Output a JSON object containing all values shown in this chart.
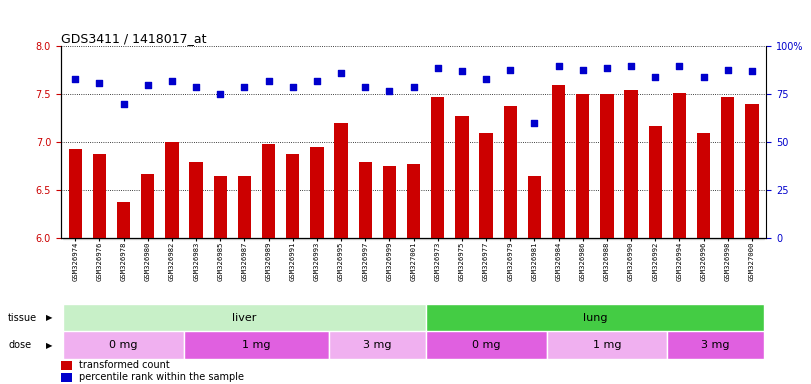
{
  "title": "GDS3411 / 1418017_at",
  "samples": [
    "GSM326974",
    "GSM326976",
    "GSM326978",
    "GSM326980",
    "GSM326982",
    "GSM326983",
    "GSM326985",
    "GSM326987",
    "GSM326989",
    "GSM326991",
    "GSM326993",
    "GSM326995",
    "GSM326997",
    "GSM326999",
    "GSM327001",
    "GSM326973",
    "GSM326975",
    "GSM326977",
    "GSM326979",
    "GSM326981",
    "GSM326984",
    "GSM326986",
    "GSM326988",
    "GSM326990",
    "GSM326992",
    "GSM326994",
    "GSM326996",
    "GSM326998",
    "GSM327000"
  ],
  "bar_values": [
    6.93,
    6.88,
    6.38,
    6.67,
    7.0,
    6.8,
    6.65,
    6.65,
    6.98,
    6.88,
    6.95,
    7.2,
    6.8,
    6.75,
    6.78,
    7.47,
    7.28,
    7.1,
    7.38,
    6.65,
    7.6,
    7.5,
    7.5,
    7.55,
    7.17,
    7.52,
    7.1,
    7.47,
    7.4
  ],
  "percentile_values": [
    83,
    81,
    70,
    80,
    82,
    79,
    75,
    79,
    82,
    79,
    82,
    86,
    79,
    77,
    79,
    89,
    87,
    83,
    88,
    60,
    90,
    88,
    89,
    90,
    84,
    90,
    84,
    88,
    87
  ],
  "ylim_left": [
    6.0,
    8.0
  ],
  "ylim_right": [
    0,
    100
  ],
  "yticks_left": [
    6.0,
    6.5,
    7.0,
    7.5,
    8.0
  ],
  "yticks_right": [
    0,
    25,
    50,
    75,
    100
  ],
  "bar_color": "#cc0000",
  "dot_color": "#0000cc",
  "tissue_groups": [
    {
      "label": "liver",
      "start": 0,
      "end": 14,
      "color": "#c8f0c8"
    },
    {
      "label": "lung",
      "start": 15,
      "end": 28,
      "color": "#44cc44"
    }
  ],
  "dose_groups": [
    {
      "label": "0 mg",
      "start": 0,
      "end": 4,
      "color": "#f0b0f0"
    },
    {
      "label": "1 mg",
      "start": 5,
      "end": 10,
      "color": "#e060e0"
    },
    {
      "label": "3 mg",
      "start": 11,
      "end": 14,
      "color": "#e060e0"
    },
    {
      "label": "0 mg",
      "start": 15,
      "end": 19,
      "color": "#f0b0f0"
    },
    {
      "label": "1 mg",
      "start": 20,
      "end": 24,
      "color": "#e060e0"
    },
    {
      "label": "3 mg",
      "start": 25,
      "end": 28,
      "color": "#e060e0"
    }
  ],
  "legend_bar_color": "#cc0000",
  "legend_dot_color": "#0000cc",
  "legend_bar_label": "transformed count",
  "legend_dot_label": "percentile rank within the sample",
  "tissue_label": "tissue",
  "dose_label": "dose",
  "tick_bg_color": "#d8d8d8"
}
